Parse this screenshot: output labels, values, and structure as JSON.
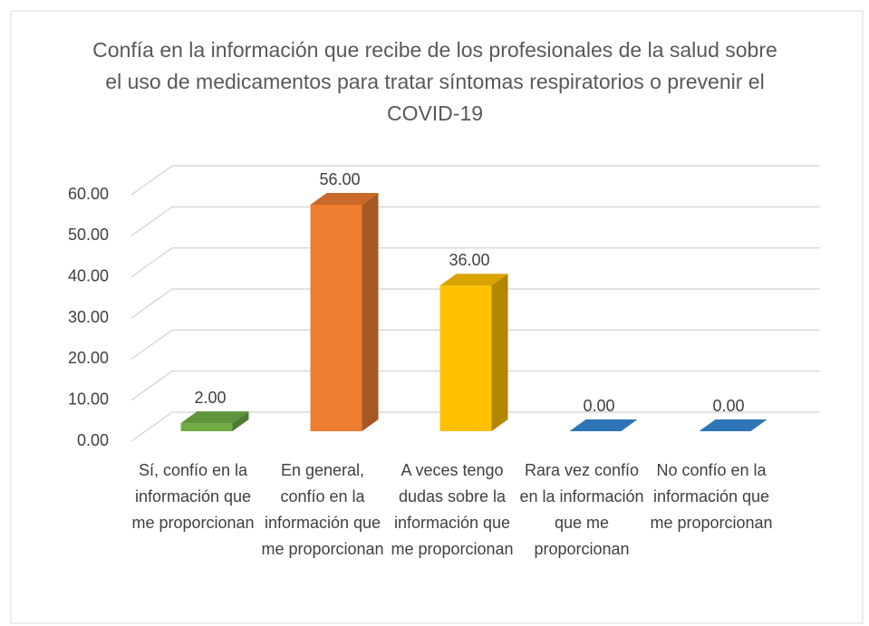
{
  "chart_data": {
    "type": "bar3d",
    "title": "Confía en la información que recibe de los profesionales de la salud sobre el uso de medicamentos para tratar síntomas respiratorios o prevenir el COVID-19",
    "categories": [
      "Sí, confío en la información que me proporcionan",
      "En general, confío en la información que me proporcionan",
      "A veces tengo dudas sobre la información que me proporcionan",
      "Rara vez confío en la información que me proporcionan",
      "No confío en la información que me proporcionan"
    ],
    "values": [
      2,
      56,
      36,
      0,
      0
    ],
    "value_labels": [
      "2.00",
      "56.00",
      "36.00",
      "0.00",
      "0.00"
    ],
    "colors": [
      "#70ad47",
      "#ed7d31",
      "#ffc000",
      "#2e75b6",
      "#2e75b6"
    ],
    "ylim": [
      0,
      60
    ],
    "yticks": [
      {
        "value": 0,
        "label": "0.00"
      },
      {
        "value": 10,
        "label": "10.00"
      },
      {
        "value": 20,
        "label": "20.00"
      },
      {
        "value": 30,
        "label": "30.00"
      },
      {
        "value": 40,
        "label": "40.00"
      },
      {
        "value": 50,
        "label": "50.00"
      },
      {
        "value": 60,
        "label": "60.00"
      }
    ],
    "grid": true
  }
}
